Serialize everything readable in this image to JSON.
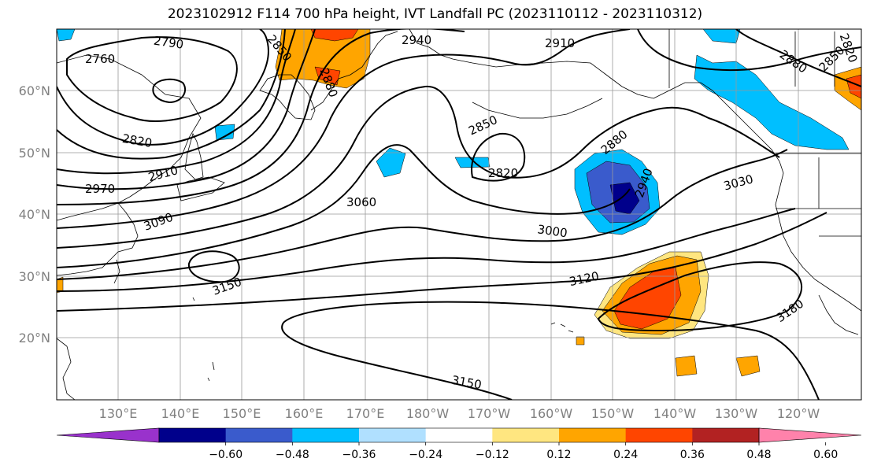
{
  "title": "2023102912 F114 700 hPa height, IVT Landfall PC (2023110112 - 2023110312)",
  "lat_labels": [
    "60°N",
    "50°N",
    "40°N",
    "30°N",
    "20°N"
  ],
  "lon_labels": [
    "130°E",
    "140°E",
    "150°E",
    "160°E",
    "170°E",
    "180°W",
    "170°W",
    "160°W",
    "150°W",
    "140°W",
    "130°W",
    "120°W"
  ],
  "contour_labels": [
    "2760",
    "2790",
    "2820",
    "2850",
    "2880",
    "2910",
    "2940",
    "2970",
    "3000",
    "3030",
    "3060",
    "3090",
    "3120",
    "3150",
    "3180",
    "2850",
    "2880",
    "2910",
    "2820",
    "2850",
    "2880",
    "2820",
    "2940",
    "3150",
    "2850"
  ],
  "colorbar": {
    "ticks": [
      "−0.60",
      "−0.48",
      "−0.36",
      "−0.24",
      "−0.12",
      "0.12",
      "0.24",
      "0.36",
      "0.48",
      "0.60"
    ],
    "colors": [
      "#9932cc",
      "#00008b",
      "#3a5bcc",
      "#00bfff",
      "#b0e0ff",
      "#ffffff",
      "#ffe680",
      "#ffa500",
      "#ff4500",
      "#b22222",
      "#ff82ab"
    ]
  }
}
